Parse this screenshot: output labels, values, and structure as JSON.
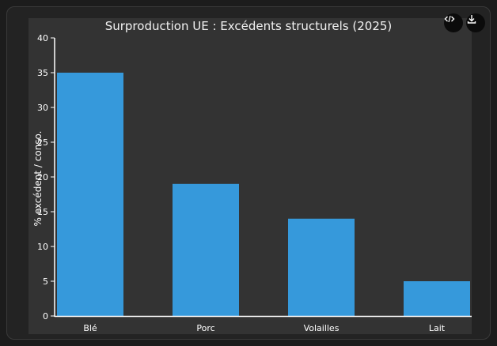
{
  "toolbar": {
    "code_icon": "code-icon",
    "download_icon": "download-icon"
  },
  "colors": {
    "bar": "#3699db",
    "axis": "#ffffff",
    "panel": "#333333"
  },
  "chart_data": {
    "type": "bar",
    "title": "Surproduction UE : Excédents structurels (2025)",
    "xlabel": "",
    "ylabel": "% excédent / conso.",
    "categories": [
      "Blé",
      "Porc",
      "Volailles",
      "Lait"
    ],
    "values": [
      35,
      19,
      14,
      5
    ],
    "ylim": [
      0,
      40
    ],
    "yticks": [
      "0",
      "5",
      "10",
      "15",
      "20",
      "25",
      "30",
      "35",
      "40"
    ],
    "grid": false,
    "legend": "none"
  }
}
